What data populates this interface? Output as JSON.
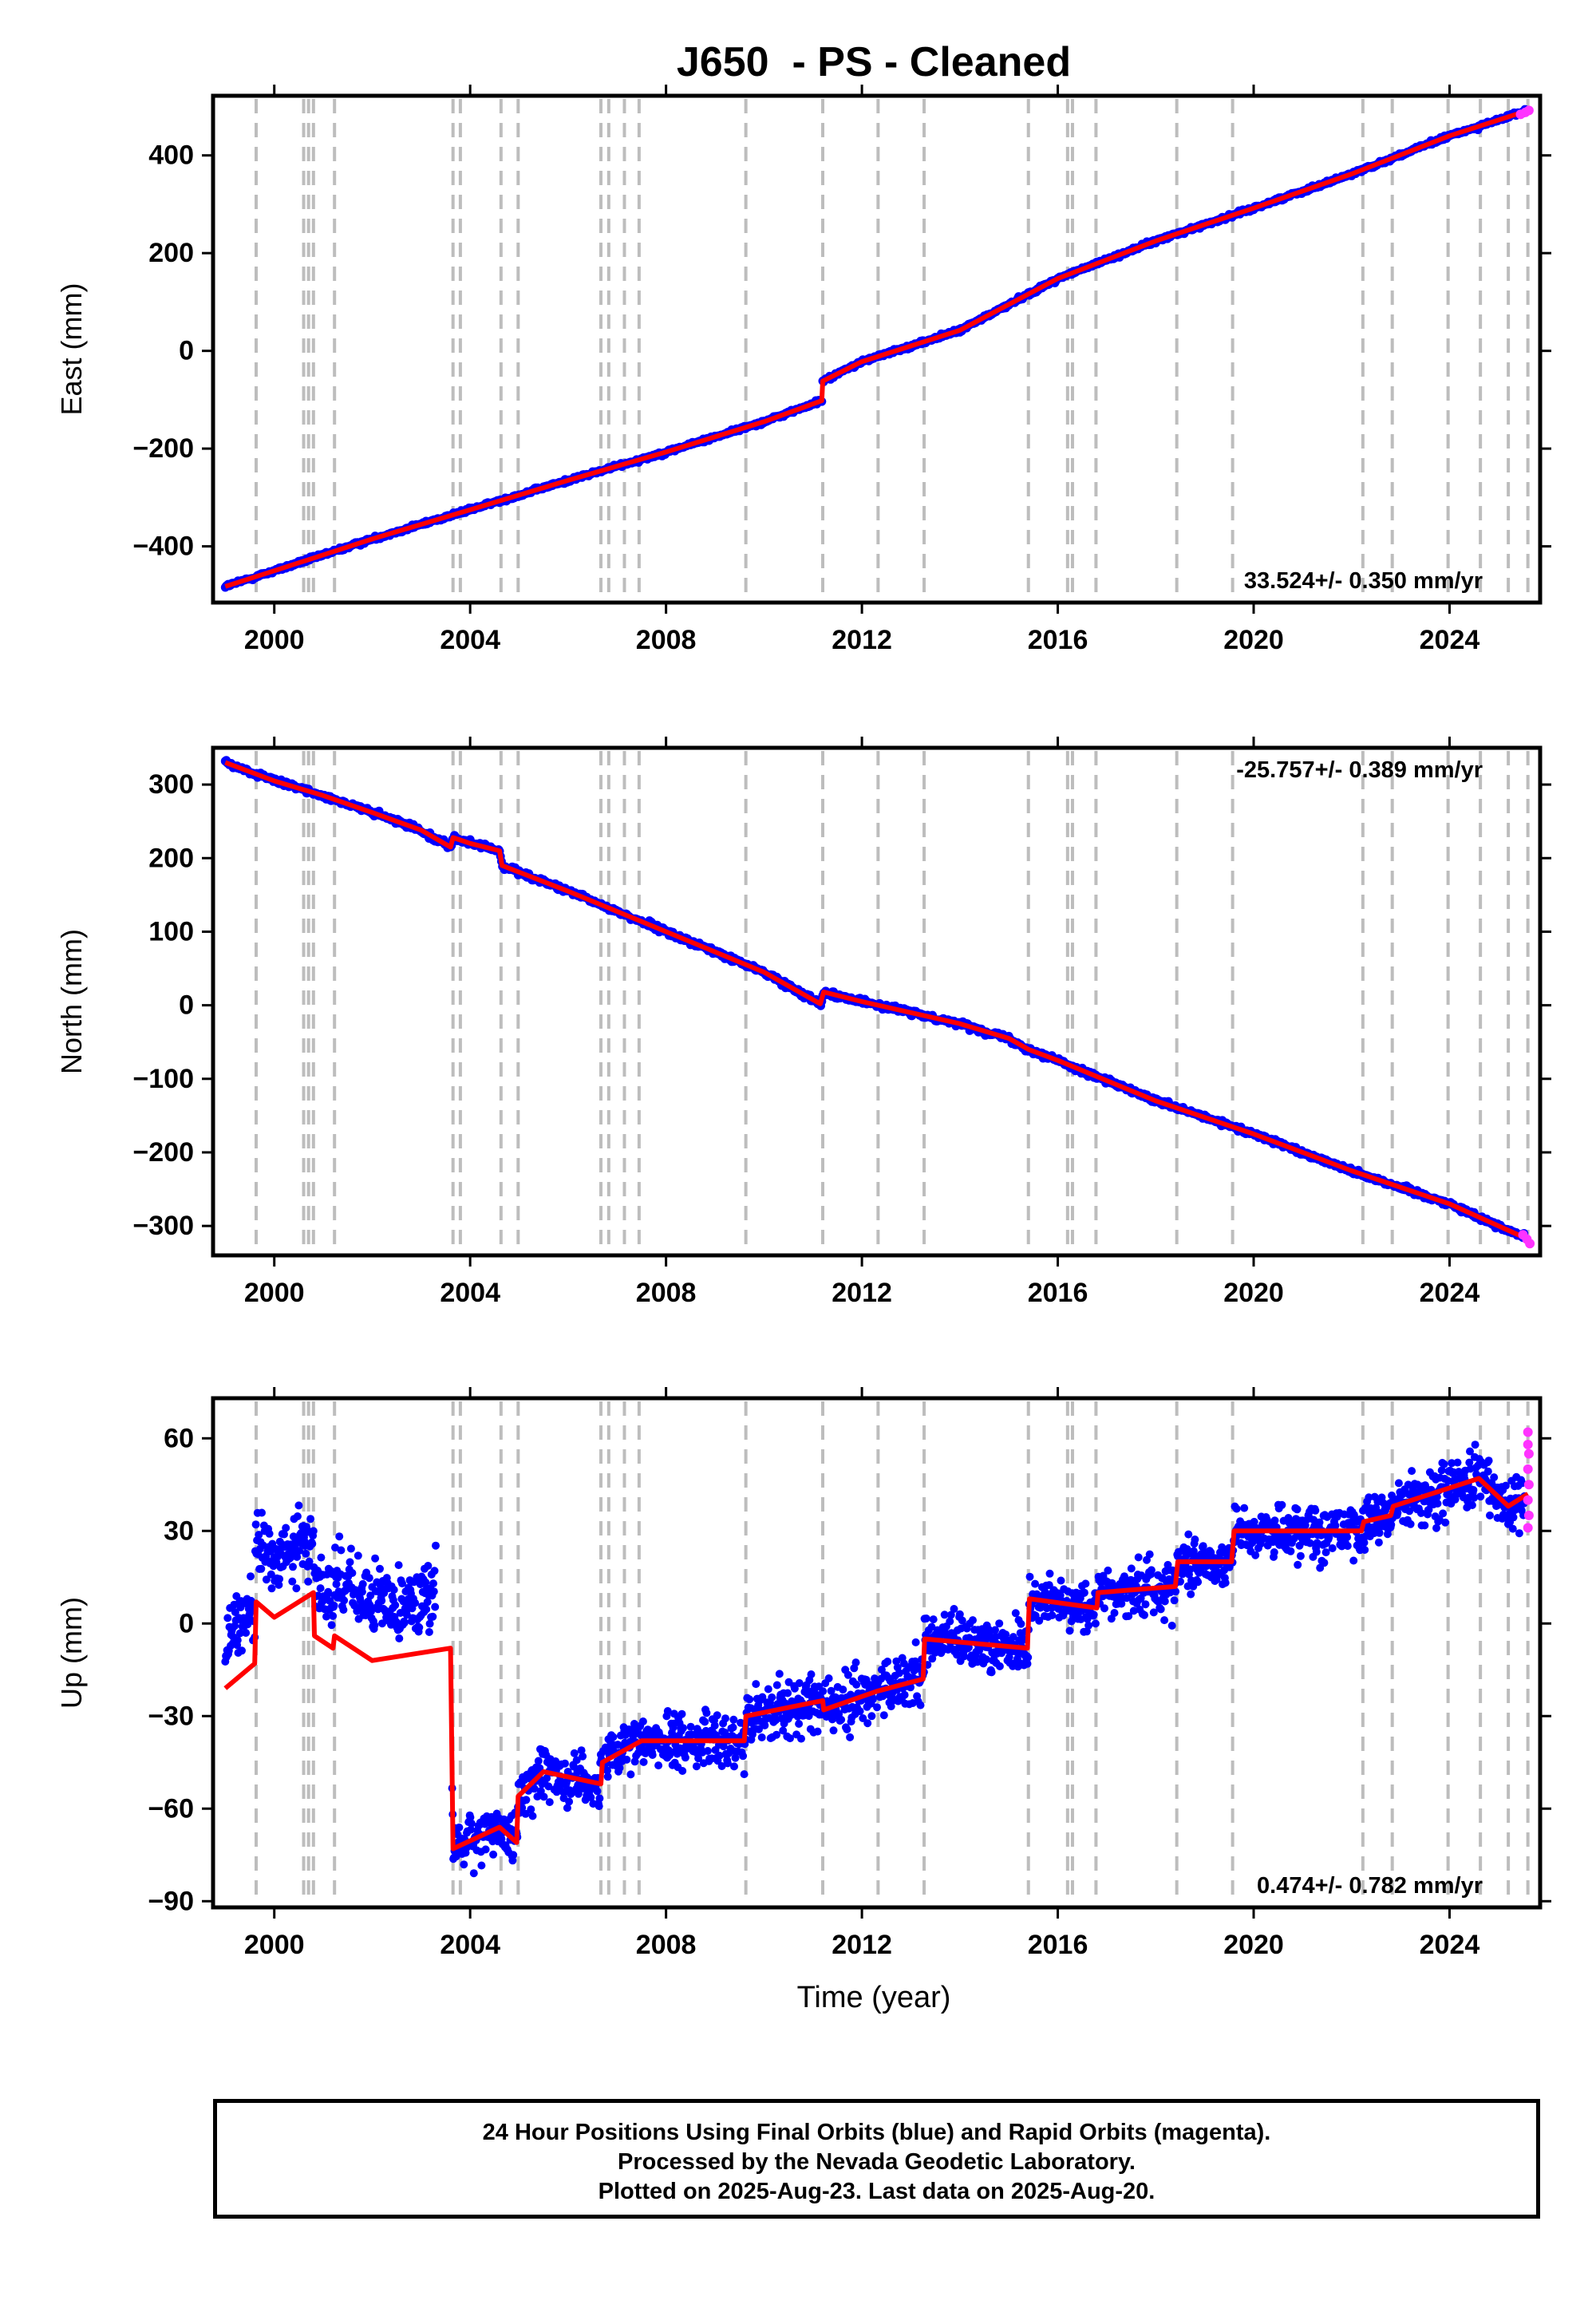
{
  "chart_data": {
    "title": "J650  - PS - Cleaned",
    "type": "scatter",
    "xlabel": "Time (year)",
    "xlim": [
      1998.75,
      2025.85
    ],
    "xticks": [
      2000,
      2004,
      2008,
      2012,
      2016,
      2020,
      2024
    ],
    "marker_years": [
      1999.63,
      2000.6,
      2000.7,
      2000.8,
      2001.23,
      2003.65,
      2003.8,
      2004.63,
      2004.98,
      2006.67,
      2006.83,
      2007.15,
      2007.45,
      2009.63,
      2011.2,
      2012.33,
      2013.27,
      2015.4,
      2016.2,
      2016.3,
      2016.78,
      2018.43,
      2019.57,
      2022.23,
      2022.83,
      2023.97,
      2024.63,
      2025.2,
      2025.6
    ],
    "series_legend": {
      "final_color": "#0000ff",
      "rapid_color": "#ff33ff",
      "model_color": "#ff0000"
    },
    "panels": [
      {
        "name": "east",
        "ylabel": "East (mm)",
        "ylim": [
          -515,
          522
        ],
        "yticks": [
          -400,
          -200,
          0,
          200,
          400
        ],
        "ytick_labels": [
          "−400",
          "−200",
          "0",
          "200",
          "400"
        ],
        "rate_label": "33.524+/- 0.350 mm/yr",
        "model_points": [
          [
            1999.0,
            -482
          ],
          [
            2000.0,
            -450
          ],
          [
            2002.0,
            -385
          ],
          [
            2004.0,
            -325
          ],
          [
            2006.0,
            -265
          ],
          [
            2008.0,
            -207
          ],
          [
            2010.0,
            -145
          ],
          [
            2011.18,
            -102
          ],
          [
            2011.2,
            -62
          ],
          [
            2012.0,
            -22
          ],
          [
            2014.0,
            42
          ],
          [
            2016.0,
            148
          ],
          [
            2018.0,
            225
          ],
          [
            2020.0,
            292
          ],
          [
            2022.0,
            362
          ],
          [
            2024.0,
            440
          ],
          [
            2025.6,
            492
          ]
        ],
        "rapid_points": [
          [
            2025.45,
            484
          ],
          [
            2025.55,
            488
          ],
          [
            2025.62,
            492
          ]
        ]
      },
      {
        "name": "north",
        "ylabel": "North (mm)",
        "ylim": [
          -340,
          350
        ],
        "yticks": [
          -300,
          -200,
          -100,
          0,
          100,
          200,
          300
        ],
        "ytick_labels": [
          "−300",
          "−200",
          "−100",
          "0",
          "100",
          "200",
          "300"
        ],
        "rate_label": "-25.757+/- 0.389 mm/yr",
        "model_points": [
          [
            1999.0,
            330
          ],
          [
            2000.0,
            305
          ],
          [
            2001.0,
            285
          ],
          [
            2002.0,
            262
          ],
          [
            2003.0,
            238
          ],
          [
            2003.6,
            215
          ],
          [
            2003.65,
            228
          ],
          [
            2004.0,
            220
          ],
          [
            2004.6,
            210
          ],
          [
            2004.65,
            190
          ],
          [
            2006.0,
            155
          ],
          [
            2008.0,
            100
          ],
          [
            2010.0,
            45
          ],
          [
            2011.15,
            2
          ],
          [
            2011.22,
            18
          ],
          [
            2012.0,
            5
          ],
          [
            2014.0,
            -25
          ],
          [
            2015.0,
            -45
          ],
          [
            2015.4,
            -60
          ],
          [
            2016.0,
            -75
          ],
          [
            2018.0,
            -130
          ],
          [
            2020.0,
            -175
          ],
          [
            2022.0,
            -225
          ],
          [
            2024.0,
            -270
          ],
          [
            2025.6,
            -318
          ]
        ],
        "rapid_points": [
          [
            2025.5,
            -312
          ],
          [
            2025.58,
            -318
          ],
          [
            2025.64,
            -324
          ]
        ]
      },
      {
        "name": "up",
        "ylabel": "Up (mm)",
        "ylim": [
          -92,
          73
        ],
        "yticks": [
          -90,
          -60,
          -30,
          0,
          30,
          60
        ],
        "ytick_labels": [
          "−90",
          "−60",
          "−30",
          "0",
          "30",
          "60"
        ],
        "rate_label": "0.474+/- 0.782 mm/yr",
        "model_points": [
          [
            1999.0,
            -21
          ],
          [
            1999.6,
            -13
          ],
          [
            1999.63,
            7
          ],
          [
            2000.0,
            2
          ],
          [
            2000.8,
            10
          ],
          [
            2000.82,
            -4
          ],
          [
            2001.2,
            -8
          ],
          [
            2001.23,
            -4
          ],
          [
            2002.0,
            -12
          ],
          [
            2003.6,
            -8
          ],
          [
            2003.65,
            -73
          ],
          [
            2004.6,
            -66
          ],
          [
            2004.95,
            -71
          ],
          [
            2004.98,
            -56
          ],
          [
            2005.5,
            -48
          ],
          [
            2006.67,
            -52
          ],
          [
            2006.7,
            -45
          ],
          [
            2007.5,
            -38
          ],
          [
            2009.6,
            -38
          ],
          [
            2009.63,
            -30
          ],
          [
            2011.2,
            -25
          ],
          [
            2011.22,
            -28
          ],
          [
            2012.3,
            -22
          ],
          [
            2013.25,
            -18
          ],
          [
            2013.28,
            -5
          ],
          [
            2015.38,
            -8
          ],
          [
            2015.42,
            8
          ],
          [
            2016.8,
            5
          ],
          [
            2016.82,
            10
          ],
          [
            2018.4,
            12
          ],
          [
            2018.45,
            20
          ],
          [
            2019.55,
            20
          ],
          [
            2019.6,
            30
          ],
          [
            2022.2,
            30
          ],
          [
            2022.25,
            33
          ],
          [
            2022.8,
            35
          ],
          [
            2022.85,
            38
          ],
          [
            2024.6,
            47
          ],
          [
            2025.2,
            38
          ],
          [
            2025.6,
            42
          ]
        ],
        "rapid_points": [
          [
            2025.6,
            62
          ],
          [
            2025.6,
            58
          ],
          [
            2025.62,
            55
          ],
          [
            2025.6,
            50
          ],
          [
            2025.62,
            45
          ],
          [
            2025.6,
            40
          ],
          [
            2025.62,
            35
          ],
          [
            2025.6,
            31
          ]
        ]
      }
    ],
    "footer_lines": [
      "24 Hour Positions Using Final Orbits (blue) and Rapid Orbits (magenta).",
      "Processed by the Nevada Geodetic Laboratory.",
      "Plotted on 2025-Aug-23. Last data on 2025-Aug-20."
    ]
  }
}
